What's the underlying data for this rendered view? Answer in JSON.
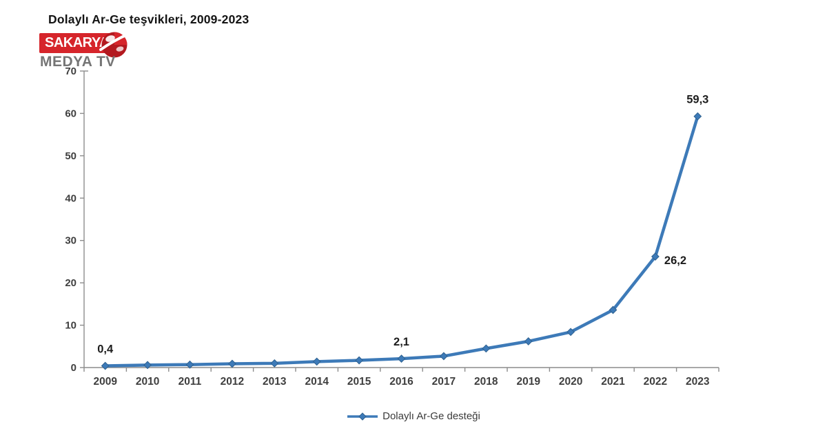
{
  "page": {
    "title": "Dolaylı Ar-Ge teşvikleri, 2009-2023"
  },
  "logo": {
    "top_text": "SAKARYA",
    "bottom_text": "MEDYA TV",
    "accent_color": "#d6252b"
  },
  "chart_data": {
    "type": "line",
    "title": "Dolaylı Ar-Ge teşvikleri, 2009-2023",
    "categories": [
      "2009",
      "2010",
      "2011",
      "2012",
      "2013",
      "2014",
      "2015",
      "2016",
      "2017",
      "2018",
      "2019",
      "2020",
      "2021",
      "2022",
      "2023"
    ],
    "series": [
      {
        "name": "Dolaylı Ar-Ge desteği",
        "values": [
          0.4,
          0.6,
          0.7,
          0.9,
          1.0,
          1.4,
          1.7,
          2.1,
          2.7,
          4.5,
          6.2,
          8.4,
          13.6,
          26.2,
          59.3
        ]
      }
    ],
    "xlabel": "",
    "ylabel": "",
    "ylim": [
      0,
      70
    ],
    "y_ticks": [
      0,
      10,
      20,
      30,
      40,
      50,
      60,
      70
    ],
    "grid": false,
    "legend_position": "bottom",
    "line_color": "#3d7ab8",
    "marker_stroke_color": "#2f618f",
    "axis_color": "#8c8c8c",
    "tick_label_color": "#3f3f3f",
    "data_label_color": "#1c1c1c",
    "marker": "diamond",
    "data_labels": [
      {
        "index": 0,
        "category": "2009",
        "text": "0,4",
        "placement": "above"
      },
      {
        "index": 7,
        "category": "2016",
        "text": "2,1",
        "placement": "above"
      },
      {
        "index": 13,
        "category": "2022",
        "text": "26,2",
        "placement": "right"
      },
      {
        "index": 14,
        "category": "2023",
        "text": "59,3",
        "placement": "above"
      }
    ]
  },
  "legend": {
    "label": "Dolaylı Ar-Ge desteği"
  }
}
